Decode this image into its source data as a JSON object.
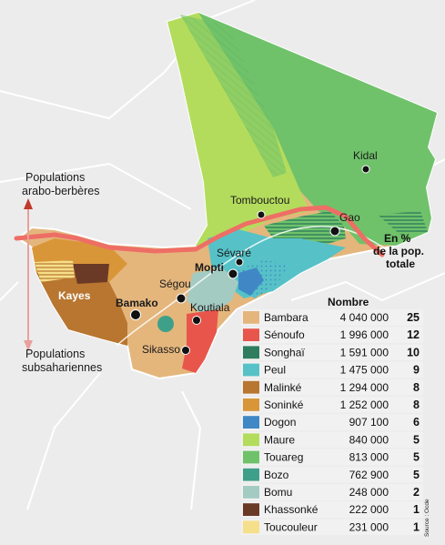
{
  "arrows": {
    "north_label": [
      "Populations",
      "arabo-berbères"
    ],
    "south_label": [
      "Populations",
      "subsahariennes"
    ]
  },
  "cities": [
    {
      "name": "Kidal",
      "bold": false
    },
    {
      "name": "Tombouctou",
      "bold": false
    },
    {
      "name": "Gao",
      "bold": false
    },
    {
      "name": "Sévaré",
      "bold": false
    },
    {
      "name": "Mopti",
      "bold": true
    },
    {
      "name": "Ségou",
      "bold": false
    },
    {
      "name": "Bamako",
      "bold": true
    },
    {
      "name": "Koutiala",
      "bold": false
    },
    {
      "name": "Sikasso",
      "bold": false
    }
  ],
  "region_label": "Kayes",
  "legend": {
    "header_number": "Nombre",
    "header_percent": [
      "En %",
      "de la pop.",
      "totale"
    ],
    "source": "Source : Ocde",
    "rows": [
      {
        "name": "Bambara",
        "number": "4 040 000",
        "percent": "25",
        "color": "#e4b67c"
      },
      {
        "name": "Sénoufo",
        "number": "1 996 000",
        "percent": "12",
        "color": "#e8564b"
      },
      {
        "name": "Songhaï",
        "number": "1 591 000",
        "percent": "10",
        "color": "#2e7d5e"
      },
      {
        "name": "Peul",
        "number": "1 475 000",
        "percent": "9",
        "color": "#56c2c7"
      },
      {
        "name": "Malinké",
        "number": "1 294 000",
        "percent": "8",
        "color": "#b87630"
      },
      {
        "name": "Soninké",
        "number": "1 252 000",
        "percent": "8",
        "color": "#d99638"
      },
      {
        "name": "Dogon",
        "number": "907 100",
        "percent": "6",
        "color": "#3f88c5"
      },
      {
        "name": "Maure",
        "number": "840 000",
        "percent": "5",
        "color": "#b4dc5c"
      },
      {
        "name": "Touareg",
        "number": "813 000",
        "percent": "5",
        "color": "#6fc26a"
      },
      {
        "name": "Bozo",
        "number": "762 900",
        "percent": "5",
        "color": "#3fa08a"
      },
      {
        "name": "Bomu",
        "number": "248 000",
        "percent": "2",
        "color": "#a4cbc2"
      },
      {
        "name": "Khassonké",
        "number": "222 000",
        "percent": "1",
        "color": "#6b3a26"
      },
      {
        "name": "Toucouleur",
        "number": "231 000",
        "percent": "1",
        "color": "#f6df8a"
      }
    ]
  }
}
